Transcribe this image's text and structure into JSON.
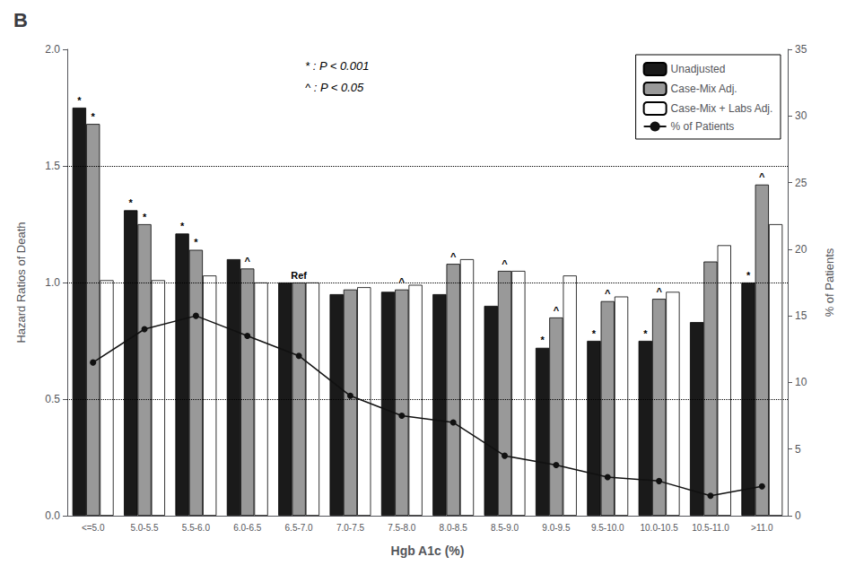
{
  "chart_data": {
    "type": "bar",
    "title": "B",
    "categories": [
      "<=5.0",
      "5.0-5.5",
      "5.5-6.0",
      "6.0-6.5",
      "6.5-7.0",
      "7.0-7.5",
      "7.5-8.0",
      "8.0-8.5",
      "8.5-9.0",
      "9.0-9.5",
      "9.5-10.0",
      "10.0-10.5",
      "10.5-11.0",
      ">11.0"
    ],
    "series": [
      {
        "name": "Unadjusted",
        "type": "bar",
        "color": "#1a1a1a",
        "values": [
          1.75,
          1.31,
          1.21,
          1.1,
          1.0,
          0.95,
          0.96,
          0.95,
          0.9,
          0.72,
          0.75,
          0.75,
          0.83,
          1.0
        ]
      },
      {
        "name": "Case-Mix Adj.",
        "type": "bar",
        "color": "#999999",
        "values": [
          1.68,
          1.25,
          1.14,
          1.06,
          1.0,
          0.97,
          0.97,
          1.08,
          1.05,
          0.85,
          0.92,
          0.93,
          1.09,
          1.42
        ]
      },
      {
        "name": "Case-Mix + Labs Adj.",
        "type": "bar",
        "color": "#ffffff",
        "values": [
          1.01,
          1.01,
          1.03,
          1.0,
          1.0,
          0.98,
          0.99,
          1.1,
          1.05,
          1.03,
          0.94,
          0.96,
          1.16,
          1.25
        ]
      },
      {
        "name": "% of Patients",
        "type": "line",
        "axis": "y2",
        "color": "#111111",
        "marker": "circle",
        "values": [
          11.5,
          14.0,
          15.0,
          13.5,
          12.0,
          9.0,
          7.5,
          7.0,
          4.5,
          3.8,
          2.9,
          2.6,
          1.5,
          2.2
        ]
      }
    ],
    "xlabel": "Hgb A1c (%)",
    "ylabel": "Hazard Ratios of Death",
    "y2label": "% of Patients",
    "ylim": [
      0.0,
      2.0
    ],
    "yticks": [
      {
        "value": 0,
        "label": "0.0"
      },
      0.5,
      {
        "value": 1,
        "label": "1.0"
      },
      1.5,
      {
        "value": 2,
        "label": "2.0"
      }
    ],
    "y2lim": [
      0,
      35
    ],
    "y2ticks": [
      0,
      5,
      10,
      15,
      20,
      25,
      30,
      35
    ],
    "hlines": [
      0.5,
      1.0,
      1.5
    ],
    "grid": false,
    "legend": "upper right",
    "annotations": [
      {
        "text": "*",
        "category": "<=5.0",
        "series": "Unadjusted"
      },
      {
        "text": "*",
        "category": "5.0-5.5",
        "series": "Unadjusted"
      },
      {
        "text": "*",
        "category": "5.5-6.0",
        "series": "Unadjusted"
      },
      {
        "text": "*",
        "category": "9.0-9.5",
        "series": "Unadjusted"
      },
      {
        "text": "*",
        "category": "9.5-10.0",
        "series": "Unadjusted"
      },
      {
        "text": "*",
        "category": "10.0-10.5",
        "series": "Unadjusted"
      },
      {
        "text": "*",
        "category": ">11.0",
        "series": "Unadjusted"
      },
      {
        "text": "*",
        "category": "<=5.0",
        "series": "Case-Mix Adj."
      },
      {
        "text": "*",
        "category": "5.0-5.5",
        "series": "Case-Mix Adj."
      },
      {
        "text": "*",
        "category": "5.5-6.0",
        "series": "Case-Mix Adj."
      },
      {
        "text": "^",
        "category": "6.0-6.5",
        "series": "Case-Mix Adj."
      },
      {
        "text": "^",
        "category": "7.5-8.0",
        "series": "Case-Mix Adj."
      },
      {
        "text": "^",
        "category": "8.0-8.5",
        "series": "Case-Mix Adj."
      },
      {
        "text": "^",
        "category": "8.5-9.0",
        "series": "Case-Mix Adj."
      },
      {
        "text": "^",
        "category": "9.0-9.5",
        "series": "Case-Mix Adj."
      },
      {
        "text": "^",
        "category": "9.5-10.0",
        "series": "Case-Mix Adj."
      },
      {
        "text": "^",
        "category": "10.0-10.5",
        "series": "Case-Mix Adj."
      },
      {
        "text": "^",
        "category": ">11.0",
        "series": "Case-Mix Adj."
      },
      {
        "text": "Ref",
        "category": "6.5-7.0",
        "series": "Case-Mix Adj."
      },
      {
        "text": "* : P < 0.001"
      },
      {
        "text": "^ : P < 0.05"
      }
    ]
  }
}
